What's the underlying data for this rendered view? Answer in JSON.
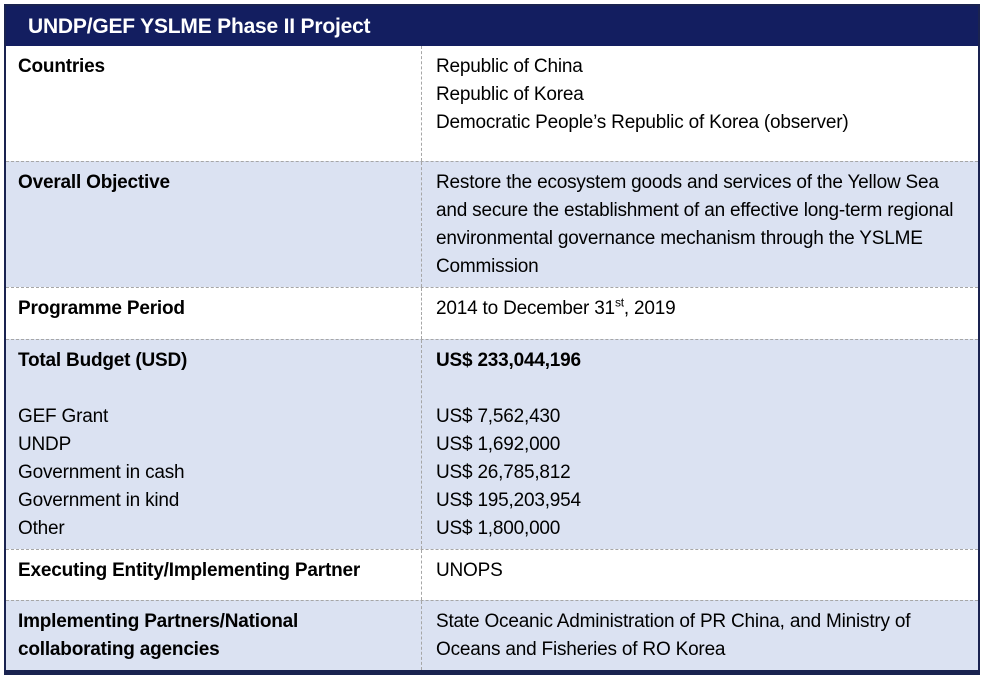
{
  "colors": {
    "title_bar_bg": "#131e60",
    "title_text": "#ffffff",
    "shaded_row_bg": "#dbe2f2",
    "outer_border": "#1a2350",
    "dashed_divider": "#a6a6a6",
    "body_text": "#000000"
  },
  "header": {
    "title": "UNDP/GEF YSLME Phase II Project"
  },
  "rows": {
    "countries": {
      "label": "Countries",
      "lines": [
        "Republic of China",
        "Republic of Korea",
        "Democratic People’s Republic of Korea (observer)"
      ]
    },
    "objective": {
      "label": "Overall Objective",
      "value": "Restore the ecosystem goods and services of the Yellow Sea and secure the establishment of an effective long-term regional environmental governance mechanism through the YSLME Commission"
    },
    "period": {
      "label": "Programme Period",
      "value_prefix": "2014 to December 31",
      "value_superscript": "st",
      "value_suffix": ", 2019"
    },
    "budget": {
      "label": "Total Budget (USD)",
      "total": "US$ 233,044,196",
      "items": [
        {
          "name": "GEF Grant",
          "amount": "US$ 7,562,430"
        },
        {
          "name": "UNDP",
          "amount": "US$ 1,692,000"
        },
        {
          "name": "Government in cash",
          "amount": "US$ 26,785,812"
        },
        {
          "name": "Government in kind",
          "amount": "US$ 195,203,954"
        },
        {
          "name": "Other",
          "amount": "US$ 1,800,000"
        }
      ]
    },
    "executing": {
      "label": "Executing Entity/Implementing Partner",
      "value": "UNOPS"
    },
    "implementing": {
      "label": "Implementing Partners/National collaborating agencies",
      "value": "State Oceanic Administration of PR China, and Ministry of Oceans and Fisheries of RO Korea"
    }
  }
}
